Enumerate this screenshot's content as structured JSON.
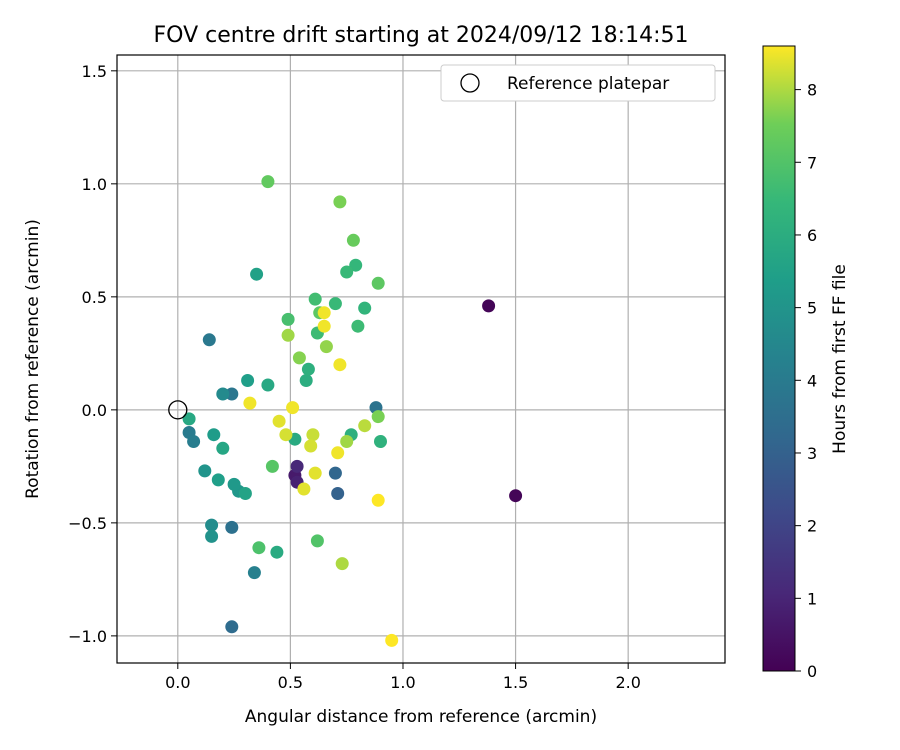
{
  "chart_data": {
    "type": "scatter",
    "title": "FOV centre drift starting at 2024/09/12 18:14:51",
    "xlabel": "Angular distance from reference (arcmin)",
    "ylabel": "Rotation from reference (arcmin)",
    "xlim": [
      -0.27,
      2.43
    ],
    "ylim": [
      -1.12,
      1.57
    ],
    "xticks": [
      0.0,
      0.5,
      1.0,
      1.5,
      2.0
    ],
    "xtick_labels": [
      "0.0",
      "0.5",
      "1.0",
      "1.5",
      "2.0"
    ],
    "yticks": [
      -1.0,
      -0.5,
      0.0,
      0.5,
      1.0,
      1.5
    ],
    "ytick_labels": [
      "−1.0",
      "−0.5",
      "0.0",
      "0.5",
      "1.0",
      "1.5"
    ],
    "grid": true,
    "legend": {
      "position": "top-right",
      "entries": [
        "Reference platepar"
      ]
    },
    "reference_point": {
      "x": 0.0,
      "y": 0.0
    },
    "colorbar": {
      "label": "Hours from first FF file",
      "range": [
        0,
        8.6
      ],
      "ticks": [
        0,
        1,
        2,
        3,
        4,
        5,
        6,
        7,
        8
      ],
      "colormap": "viridis"
    },
    "points": [
      {
        "x": 1.38,
        "y": 0.46,
        "hours": 0.1
      },
      {
        "x": 1.5,
        "y": -0.38,
        "hours": 0.1
      },
      {
        "x": 0.52,
        "y": -0.29,
        "hours": 0.7
      },
      {
        "x": 0.53,
        "y": -0.32,
        "hours": 0.9
      },
      {
        "x": 0.53,
        "y": -0.25,
        "hours": 1.1
      },
      {
        "x": 0.71,
        "y": -0.37,
        "hours": 3.0
      },
      {
        "x": 0.7,
        "y": -0.28,
        "hours": 3.2
      },
      {
        "x": 0.24,
        "y": -0.96,
        "hours": 3.4
      },
      {
        "x": 0.24,
        "y": -0.52,
        "hours": 3.6
      },
      {
        "x": 0.88,
        "y": 0.01,
        "hours": 3.7
      },
      {
        "x": 0.24,
        "y": 0.07,
        "hours": 3.8
      },
      {
        "x": 0.14,
        "y": 0.31,
        "hours": 3.9
      },
      {
        "x": 0.05,
        "y": -0.1,
        "hours": 4.0
      },
      {
        "x": 0.07,
        "y": -0.14,
        "hours": 4.1
      },
      {
        "x": 0.34,
        "y": -0.72,
        "hours": 4.2
      },
      {
        "x": 0.2,
        "y": 0.07,
        "hours": 4.6
      },
      {
        "x": 0.15,
        "y": -0.51,
        "hours": 4.7
      },
      {
        "x": 0.15,
        "y": -0.56,
        "hours": 4.9
      },
      {
        "x": 0.12,
        "y": -0.27,
        "hours": 5.0
      },
      {
        "x": 0.27,
        "y": -0.36,
        "hours": 5.1
      },
      {
        "x": 0.25,
        "y": -0.33,
        "hours": 5.2
      },
      {
        "x": 0.16,
        "y": -0.11,
        "hours": 5.3
      },
      {
        "x": 0.18,
        "y": -0.31,
        "hours": 5.4
      },
      {
        "x": 0.31,
        "y": 0.13,
        "hours": 5.4
      },
      {
        "x": 0.35,
        "y": 0.6,
        "hours": 5.5
      },
      {
        "x": 0.3,
        "y": -0.37,
        "hours": 5.6
      },
      {
        "x": 0.2,
        "y": -0.17,
        "hours": 5.7
      },
      {
        "x": 0.05,
        "y": -0.04,
        "hours": 5.8
      },
      {
        "x": 0.4,
        "y": 0.11,
        "hours": 5.8
      },
      {
        "x": 0.44,
        "y": -0.63,
        "hours": 5.9
      },
      {
        "x": 0.52,
        "y": -0.13,
        "hours": 5.9
      },
      {
        "x": 0.57,
        "y": 0.13,
        "hours": 6.0
      },
      {
        "x": 0.58,
        "y": 0.18,
        "hours": 6.1
      },
      {
        "x": 0.77,
        "y": -0.11,
        "hours": 6.1
      },
      {
        "x": 0.9,
        "y": -0.14,
        "hours": 6.2
      },
      {
        "x": 0.83,
        "y": 0.45,
        "hours": 6.3
      },
      {
        "x": 0.79,
        "y": 0.64,
        "hours": 6.4
      },
      {
        "x": 0.75,
        "y": 0.61,
        "hours": 6.5
      },
      {
        "x": 0.7,
        "y": 0.47,
        "hours": 6.5
      },
      {
        "x": 0.8,
        "y": 0.37,
        "hours": 6.6
      },
      {
        "x": 0.62,
        "y": 0.34,
        "hours": 6.6
      },
      {
        "x": 0.61,
        "y": 0.49,
        "hours": 6.7
      },
      {
        "x": 0.49,
        "y": 0.4,
        "hours": 6.8
      },
      {
        "x": 0.36,
        "y": -0.61,
        "hours": 6.9
      },
      {
        "x": 0.62,
        "y": -0.58,
        "hours": 7.0
      },
      {
        "x": 0.42,
        "y": -0.25,
        "hours": 7.1
      },
      {
        "x": 0.63,
        "y": 0.43,
        "hours": 7.2
      },
      {
        "x": 0.89,
        "y": 0.56,
        "hours": 7.2
      },
      {
        "x": 0.4,
        "y": 1.01,
        "hours": 7.3
      },
      {
        "x": 0.78,
        "y": 0.75,
        "hours": 7.4
      },
      {
        "x": 0.72,
        "y": 0.92,
        "hours": 7.6
      },
      {
        "x": 0.89,
        "y": -0.03,
        "hours": 7.6
      },
      {
        "x": 0.54,
        "y": 0.23,
        "hours": 7.7
      },
      {
        "x": 0.66,
        "y": 0.28,
        "hours": 7.8
      },
      {
        "x": 0.49,
        "y": 0.33,
        "hours": 7.9
      },
      {
        "x": 0.75,
        "y": -0.14,
        "hours": 7.9
      },
      {
        "x": 0.73,
        "y": -0.68,
        "hours": 8.0
      },
      {
        "x": 0.83,
        "y": -0.07,
        "hours": 8.1
      },
      {
        "x": 0.6,
        "y": -0.11,
        "hours": 8.2
      },
      {
        "x": 0.48,
        "y": -0.11,
        "hours": 8.3
      },
      {
        "x": 0.59,
        "y": -0.16,
        "hours": 8.3
      },
      {
        "x": 0.61,
        "y": -0.28,
        "hours": 8.4
      },
      {
        "x": 0.56,
        "y": -0.35,
        "hours": 8.4
      },
      {
        "x": 0.45,
        "y": -0.05,
        "hours": 8.4
      },
      {
        "x": 0.51,
        "y": 0.01,
        "hours": 8.5
      },
      {
        "x": 0.32,
        "y": 0.03,
        "hours": 8.5
      },
      {
        "x": 0.72,
        "y": 0.2,
        "hours": 8.5
      },
      {
        "x": 0.65,
        "y": 0.37,
        "hours": 8.5
      },
      {
        "x": 0.65,
        "y": 0.43,
        "hours": 8.5
      },
      {
        "x": 0.71,
        "y": -0.19,
        "hours": 8.5
      },
      {
        "x": 0.89,
        "y": -0.4,
        "hours": 8.6
      },
      {
        "x": 0.95,
        "y": -1.02,
        "hours": 8.6
      }
    ]
  }
}
